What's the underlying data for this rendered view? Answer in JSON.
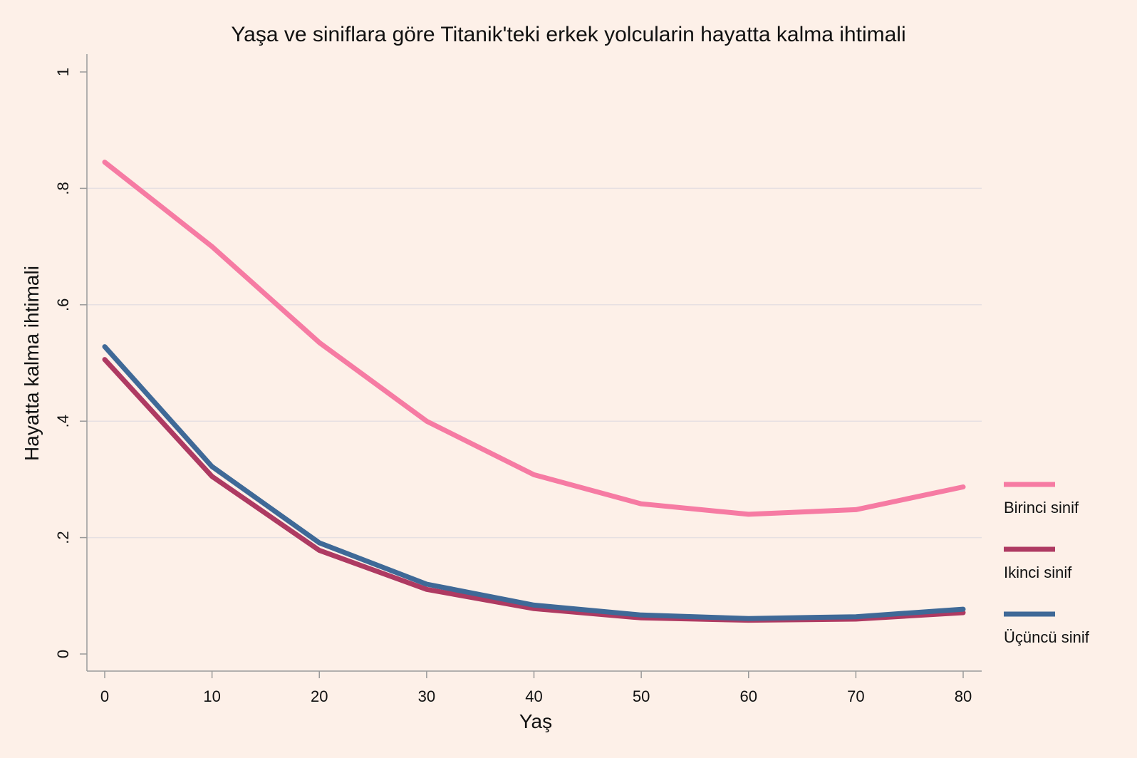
{
  "chart_data": {
    "type": "line",
    "title": "Yaşa ve siniflara göre Titanik'teki erkek yolcularin hayatta kalma ihtimali",
    "xlabel": "Yaş",
    "ylabel": "Hayatta kalma ihtimali",
    "x": [
      0,
      10,
      20,
      30,
      40,
      50,
      60,
      70,
      80
    ],
    "xlim": [
      0,
      80
    ],
    "ylim": [
      0,
      1
    ],
    "x_ticks": [
      0,
      10,
      20,
      30,
      40,
      50,
      60,
      70,
      80
    ],
    "x_tick_labels": [
      "0",
      "10",
      "20",
      "30",
      "40",
      "50",
      "60",
      "70",
      "80"
    ],
    "y_ticks": [
      0,
      0.2,
      0.4,
      0.6,
      0.8,
      1
    ],
    "y_tick_labels": [
      "0",
      ".2",
      ".4",
      ".6",
      ".8",
      "1"
    ],
    "grid": true,
    "legend_position": "right",
    "series": [
      {
        "name": "Birinci sinif",
        "color": "#f67ba3",
        "values": [
          0.845,
          0.7,
          0.535,
          0.4,
          0.308,
          0.258,
          0.24,
          0.248,
          0.287
        ]
      },
      {
        "name": "Ikinci sinif",
        "color": "#ae3a62",
        "values": [
          0.506,
          0.305,
          0.178,
          0.111,
          0.078,
          0.062,
          0.058,
          0.06,
          0.071
        ]
      },
      {
        "name": "Üçüncü sinif",
        "color": "#3f6997",
        "values": [
          0.528,
          0.322,
          0.191,
          0.12,
          0.084,
          0.067,
          0.061,
          0.064,
          0.077
        ]
      }
    ]
  }
}
